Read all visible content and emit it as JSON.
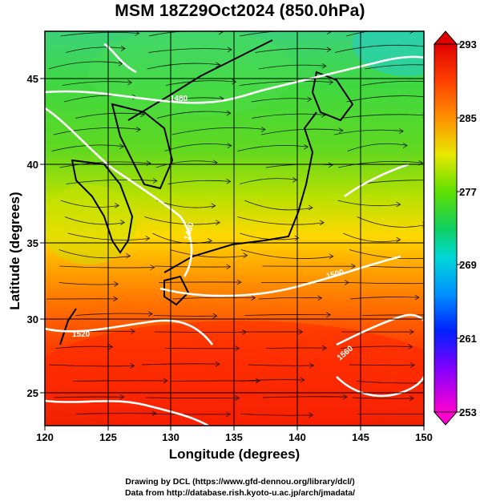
{
  "header": {
    "title": "MSM 18Z29Oct2024 (850.0hPa)"
  },
  "axes": {
    "xlabel": "Longitude (degrees)",
    "ylabel": "Latitude  (degrees)",
    "x_ticks": [
      "120",
      "125",
      "130",
      "135",
      "140",
      "145",
      "150"
    ],
    "y_ticks": [
      "25",
      "30",
      "35",
      "40",
      "45"
    ]
  },
  "colorbar": {
    "labels": [
      "293",
      "285",
      "277",
      "269",
      "261",
      "253"
    ],
    "colors": [
      "#ff00c8",
      "#3000ff",
      "#0068ff",
      "#00d8d8",
      "#10d060",
      "#50d800",
      "#d8f000",
      "#ffd000",
      "#ff8000",
      "#f01000"
    ]
  },
  "contours": {
    "labels": [
      "1480",
      "1480",
      "1500",
      "1520",
      "1560"
    ]
  },
  "credits": {
    "line1": "Drawing by DCL (https://www.gfd-dennou.org/library/dcl/)",
    "line2": "Data from http://database.rish.kyoto-u.ac.jp/arch/jmadata/"
  },
  "chart_data": {
    "type": "heatmap",
    "title": "MSM 18Z29Oct2024 (850.0hPa)",
    "xlabel": "Longitude (degrees)",
    "ylabel": "Latitude  (degrees)",
    "xlim": [
      120,
      150
    ],
    "ylim": [
      22.4,
      47.6
    ],
    "x_ticks": [
      120,
      125,
      130,
      135,
      140,
      145,
      150
    ],
    "y_ticks": [
      25,
      30,
      35,
      40,
      45
    ],
    "grid": true,
    "colorbar": {
      "min": 253,
      "max": 293,
      "ticks": [
        293,
        285,
        277,
        269,
        261,
        253
      ]
    },
    "overlays": [
      "temperature shading",
      "geopotential height contours (white)",
      "wind streamlines",
      "coastlines"
    ]
  }
}
